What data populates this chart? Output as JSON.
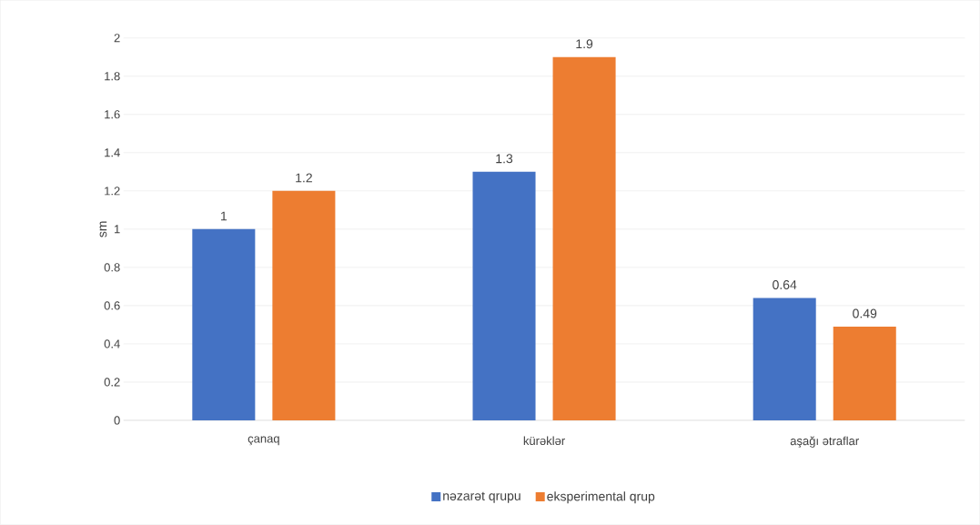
{
  "chart_data": {
    "type": "bar",
    "ylabel": "sm",
    "categories": [
      "çanaq",
      "kürəklər",
      "aşağı ətraflar"
    ],
    "series": [
      {
        "name": "nəzarət qrupu",
        "color": "#4472c4",
        "values": [
          1,
          1.3,
          0.64
        ]
      },
      {
        "name": "eksperimental qrup",
        "color": "#ed7d31",
        "values": [
          1.2,
          1.9,
          0.49
        ]
      }
    ],
    "ylim": [
      0,
      2
    ],
    "yticks": [
      0,
      0.2,
      0.4,
      0.6,
      0.8,
      1,
      1.2,
      1.4,
      1.6,
      1.8,
      2
    ],
    "grid": "y",
    "legend": "bottom",
    "data_labels": true
  }
}
